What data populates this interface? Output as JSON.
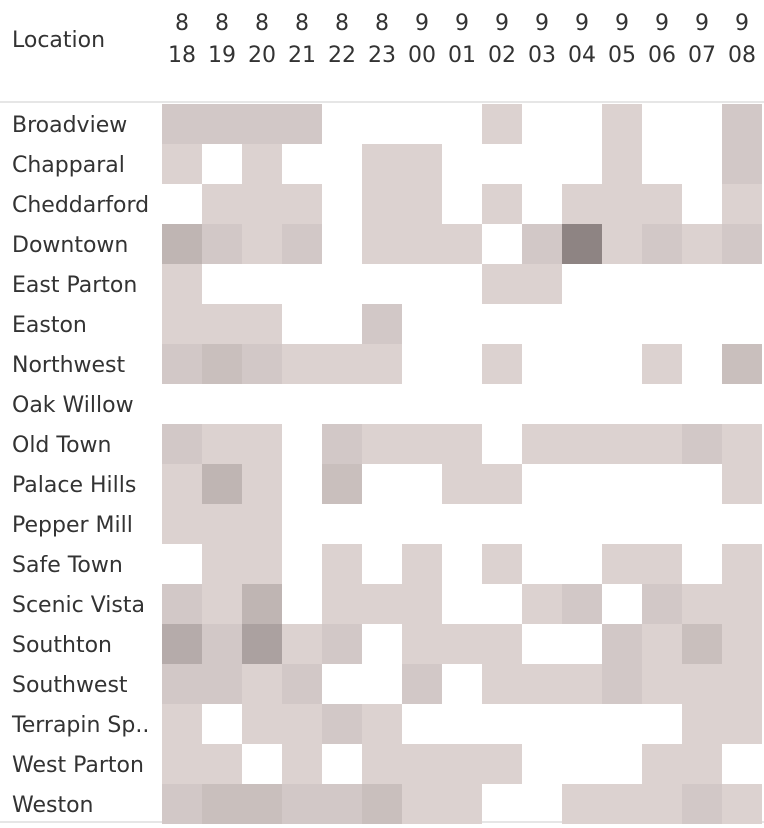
{
  "chart_data": {
    "type": "heatmap",
    "row_header": "Location",
    "columns": [
      {
        "top": "8",
        "bottom": "18"
      },
      {
        "top": "8",
        "bottom": "19"
      },
      {
        "top": "8",
        "bottom": "20"
      },
      {
        "top": "8",
        "bottom": "21"
      },
      {
        "top": "8",
        "bottom": "22"
      },
      {
        "top": "8",
        "bottom": "23"
      },
      {
        "top": "9",
        "bottom": "00"
      },
      {
        "top": "9",
        "bottom": "01"
      },
      {
        "top": "9",
        "bottom": "02"
      },
      {
        "top": "9",
        "bottom": "03"
      },
      {
        "top": "9",
        "bottom": "04"
      },
      {
        "top": "9",
        "bottom": "05"
      },
      {
        "top": "9",
        "bottom": "06"
      },
      {
        "top": "9",
        "bottom": "07"
      },
      {
        "top": "9",
        "bottom": "08"
      }
    ],
    "rows": [
      "Broadview",
      "Chapparal",
      "Cheddarford",
      "Downtown",
      "East Parton",
      "Easton",
      "Northwest",
      "Oak Willow",
      "Old Town",
      "Palace Hills",
      "Pepper Mill",
      "Safe Town",
      "Scenic Vista",
      "Southton",
      "Southwest",
      "Terrapin Sp..",
      "West Parton",
      "Weston"
    ],
    "values": [
      [
        3,
        3,
        3,
        3,
        0,
        0,
        0,
        0,
        2,
        0,
        0,
        2,
        0,
        0,
        3
      ],
      [
        2,
        0,
        2,
        0,
        0,
        2,
        2,
        0,
        0,
        0,
        0,
        2,
        0,
        0,
        3
      ],
      [
        0,
        2,
        2,
        2,
        0,
        2,
        2,
        0,
        2,
        0,
        2,
        2,
        2,
        0,
        2
      ],
      [
        5,
        3,
        2,
        3,
        0,
        2,
        2,
        2,
        0,
        3,
        10,
        2,
        3,
        2,
        3
      ],
      [
        2,
        0,
        0,
        0,
        0,
        0,
        0,
        0,
        2,
        2,
        0,
        0,
        0,
        0,
        0
      ],
      [
        2,
        2,
        2,
        0,
        0,
        3,
        0,
        0,
        0,
        0,
        0,
        0,
        0,
        0,
        0
      ],
      [
        3,
        4,
        3,
        2,
        2,
        2,
        0,
        0,
        2,
        0,
        0,
        0,
        2,
        0,
        4
      ],
      [
        0,
        0,
        0,
        0,
        0,
        0,
        0,
        0,
        0,
        0,
        0,
        0,
        0,
        0,
        0
      ],
      [
        3,
        2,
        2,
        0,
        3,
        2,
        2,
        2,
        0,
        2,
        2,
        2,
        2,
        3,
        2
      ],
      [
        2,
        5,
        2,
        0,
        4,
        0,
        0,
        2,
        2,
        0,
        0,
        0,
        0,
        0,
        2
      ],
      [
        2,
        2,
        2,
        0,
        0,
        0,
        0,
        0,
        0,
        0,
        0,
        0,
        0,
        0,
        0
      ],
      [
        0,
        2,
        2,
        0,
        2,
        0,
        2,
        0,
        2,
        0,
        0,
        2,
        2,
        0,
        2
      ],
      [
        3,
        2,
        5,
        0,
        2,
        2,
        2,
        0,
        0,
        2,
        3,
        0,
        3,
        2,
        2
      ],
      [
        6,
        3,
        7,
        2,
        3,
        0,
        2,
        2,
        2,
        0,
        0,
        3,
        2,
        4,
        2
      ],
      [
        3,
        3,
        2,
        3,
        0,
        0,
        3,
        0,
        2,
        2,
        2,
        3,
        2,
        2,
        2
      ],
      [
        2,
        0,
        2,
        2,
        3,
        2,
        0,
        0,
        0,
        0,
        0,
        0,
        0,
        2,
        2
      ],
      [
        2,
        2,
        0,
        2,
        0,
        2,
        2,
        2,
        2,
        0,
        0,
        0,
        2,
        2,
        0
      ],
      [
        3,
        4,
        4,
        3,
        3,
        4,
        2,
        2,
        0,
        0,
        2,
        2,
        2,
        3,
        2
      ]
    ],
    "value_range": [
      0,
      10
    ],
    "color_scale": {
      "low": "#e6dcda",
      "high": "#8e8483"
    },
    "grid": false,
    "legend": "none"
  }
}
